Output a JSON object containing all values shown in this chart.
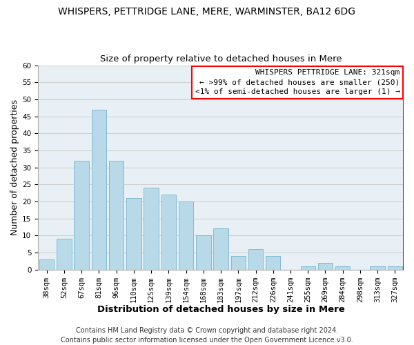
{
  "title": "WHISPERS, PETTRIDGE LANE, MERE, WARMINSTER, BA12 6DG",
  "subtitle": "Size of property relative to detached houses in Mere",
  "xlabel": "Distribution of detached houses by size in Mere",
  "ylabel": "Number of detached properties",
  "bar_labels": [
    "38sqm",
    "52sqm",
    "67sqm",
    "81sqm",
    "96sqm",
    "110sqm",
    "125sqm",
    "139sqm",
    "154sqm",
    "168sqm",
    "183sqm",
    "197sqm",
    "212sqm",
    "226sqm",
    "241sqm",
    "255sqm",
    "269sqm",
    "284sqm",
    "298sqm",
    "313sqm",
    "327sqm"
  ],
  "bar_values": [
    3,
    9,
    32,
    47,
    32,
    21,
    24,
    22,
    20,
    10,
    12,
    4,
    6,
    4,
    0,
    1,
    2,
    1,
    0,
    1,
    1
  ],
  "bar_color": "#b8d9e8",
  "bar_edge_color": "#7fbcd4",
  "ylim": [
    0,
    60
  ],
  "yticks": [
    0,
    5,
    10,
    15,
    20,
    25,
    30,
    35,
    40,
    45,
    50,
    55,
    60
  ],
  "grid_color": "#d0d0d0",
  "bg_color": "#ffffff",
  "plot_bg_color": "#e8f0f5",
  "legend_title": "WHISPERS PETTRIDGE LANE: 321sqm",
  "legend_line1": "← >99% of detached houses are smaller (250)",
  "legend_line2": "<1% of semi-detached houses are larger (1) →",
  "legend_box_color": "white",
  "legend_box_edge_color": "red",
  "footer_line1": "Contains HM Land Registry data © Crown copyright and database right 2024.",
  "footer_line2": "Contains public sector information licensed under the Open Government Licence v3.0.",
  "title_fontsize": 10,
  "subtitle_fontsize": 9.5,
  "xlabel_fontsize": 9.5,
  "ylabel_fontsize": 9,
  "tick_fontsize": 7.5,
  "footer_fontsize": 7,
  "legend_fontsize": 8
}
